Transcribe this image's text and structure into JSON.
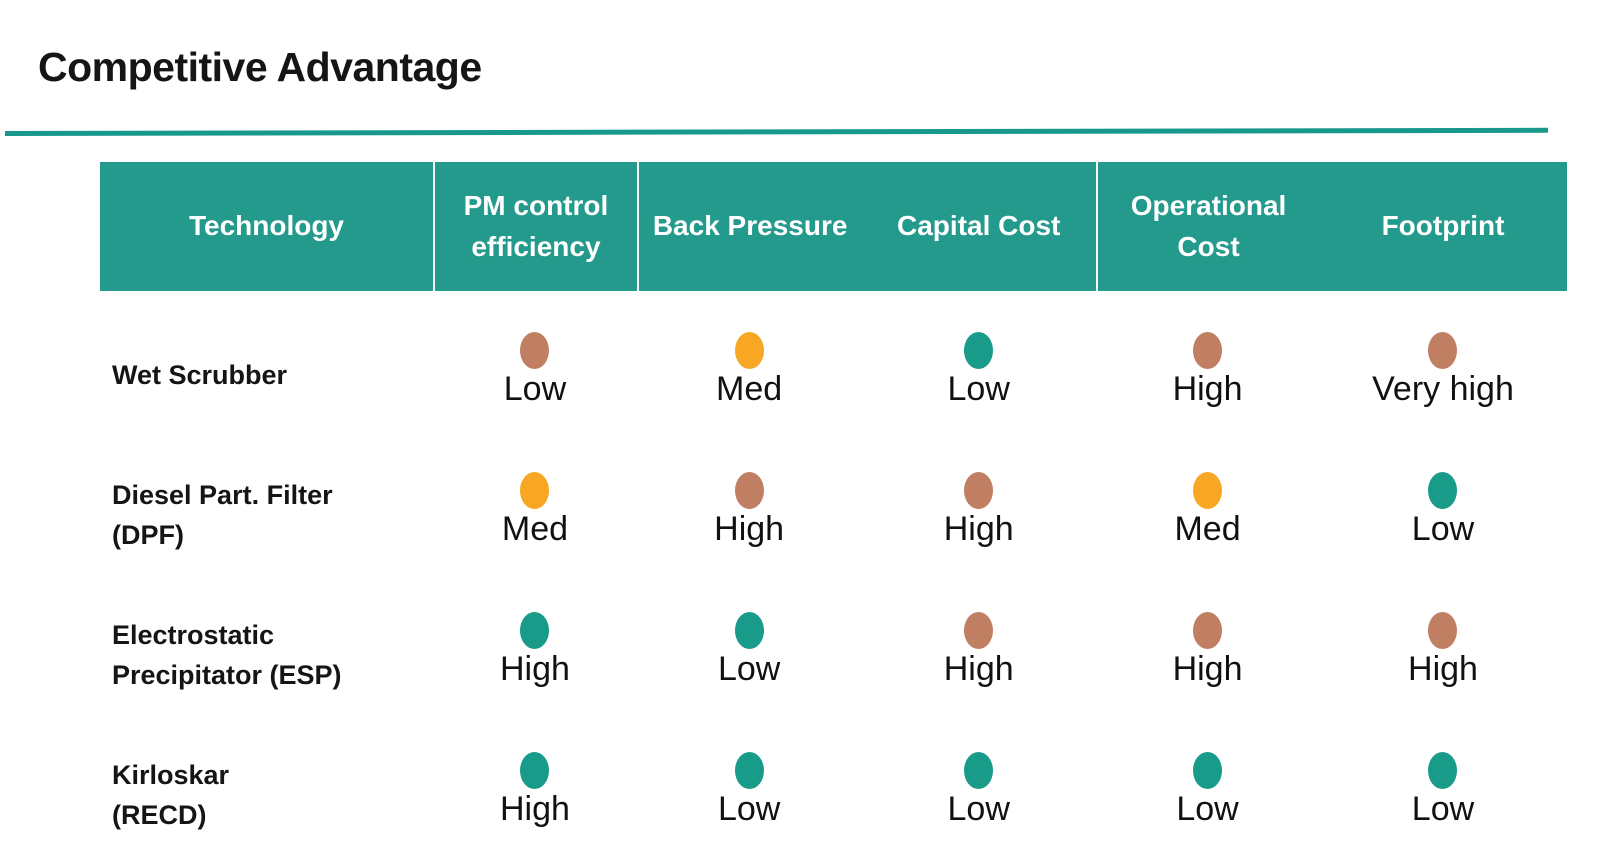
{
  "title": "Competitive Advantage",
  "accent_color": "#19998b",
  "header_color": "#239a8c",
  "palette": {
    "teal": "#189b89",
    "orange": "#f7a723",
    "brown": "#c07f62"
  },
  "table": {
    "columns": [
      "Technology",
      "PM control efficiency",
      "Back Pressure",
      "Capital Cost",
      "Operational Cost",
      "Footprint"
    ],
    "rows": [
      {
        "name": "Wet Scrubber",
        "cells": [
          {
            "label": "Low",
            "color": "brown"
          },
          {
            "label": "Med",
            "color": "orange"
          },
          {
            "label": "Low",
            "color": "teal"
          },
          {
            "label": "High",
            "color": "brown"
          },
          {
            "label": "Very high",
            "color": "brown"
          }
        ]
      },
      {
        "name": "Diesel Part. Filter\n(DPF)",
        "cells": [
          {
            "label": "Med",
            "color": "orange"
          },
          {
            "label": "High",
            "color": "brown"
          },
          {
            "label": "High",
            "color": "brown"
          },
          {
            "label": "Med",
            "color": "orange"
          },
          {
            "label": "Low",
            "color": "teal"
          }
        ]
      },
      {
        "name": "Electrostatic\nPrecipitator (ESP)",
        "cells": [
          {
            "label": "High",
            "color": "teal"
          },
          {
            "label": "Low",
            "color": "teal"
          },
          {
            "label": "High",
            "color": "brown"
          },
          {
            "label": "High",
            "color": "brown"
          },
          {
            "label": "High",
            "color": "brown"
          }
        ]
      },
      {
        "name": "Kirloskar\n(RECD)",
        "cells": [
          {
            "label": "High",
            "color": "teal"
          },
          {
            "label": "Low",
            "color": "teal"
          },
          {
            "label": "Low",
            "color": "teal"
          },
          {
            "label": "Low",
            "color": "teal"
          },
          {
            "label": "Low",
            "color": "teal"
          }
        ]
      }
    ]
  }
}
